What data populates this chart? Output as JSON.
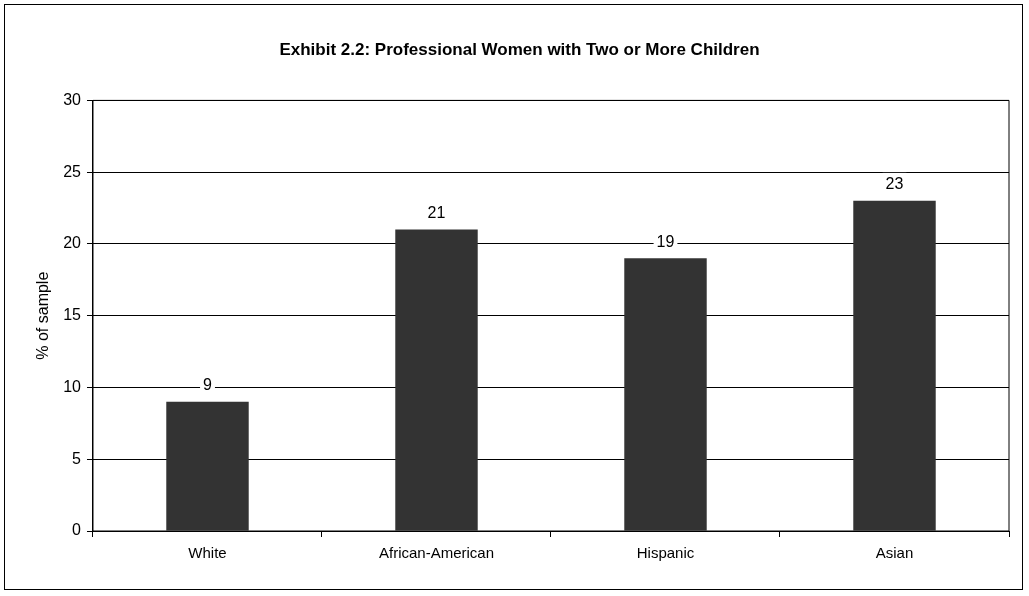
{
  "chart_data": {
    "type": "bar",
    "title": "Exhibit 2.2: Professional Women with Two or More Children",
    "ylabel": "% of sample",
    "categories": [
      "White",
      "African-American",
      "Hispanic",
      "Asian"
    ],
    "values": [
      9,
      21,
      19,
      23
    ],
    "color": "#333333",
    "ylim": [
      0,
      30
    ],
    "yticks": [
      0,
      5,
      10,
      15,
      20,
      25,
      30
    ],
    "grid": "y",
    "data_labels": true,
    "legend": false
  }
}
